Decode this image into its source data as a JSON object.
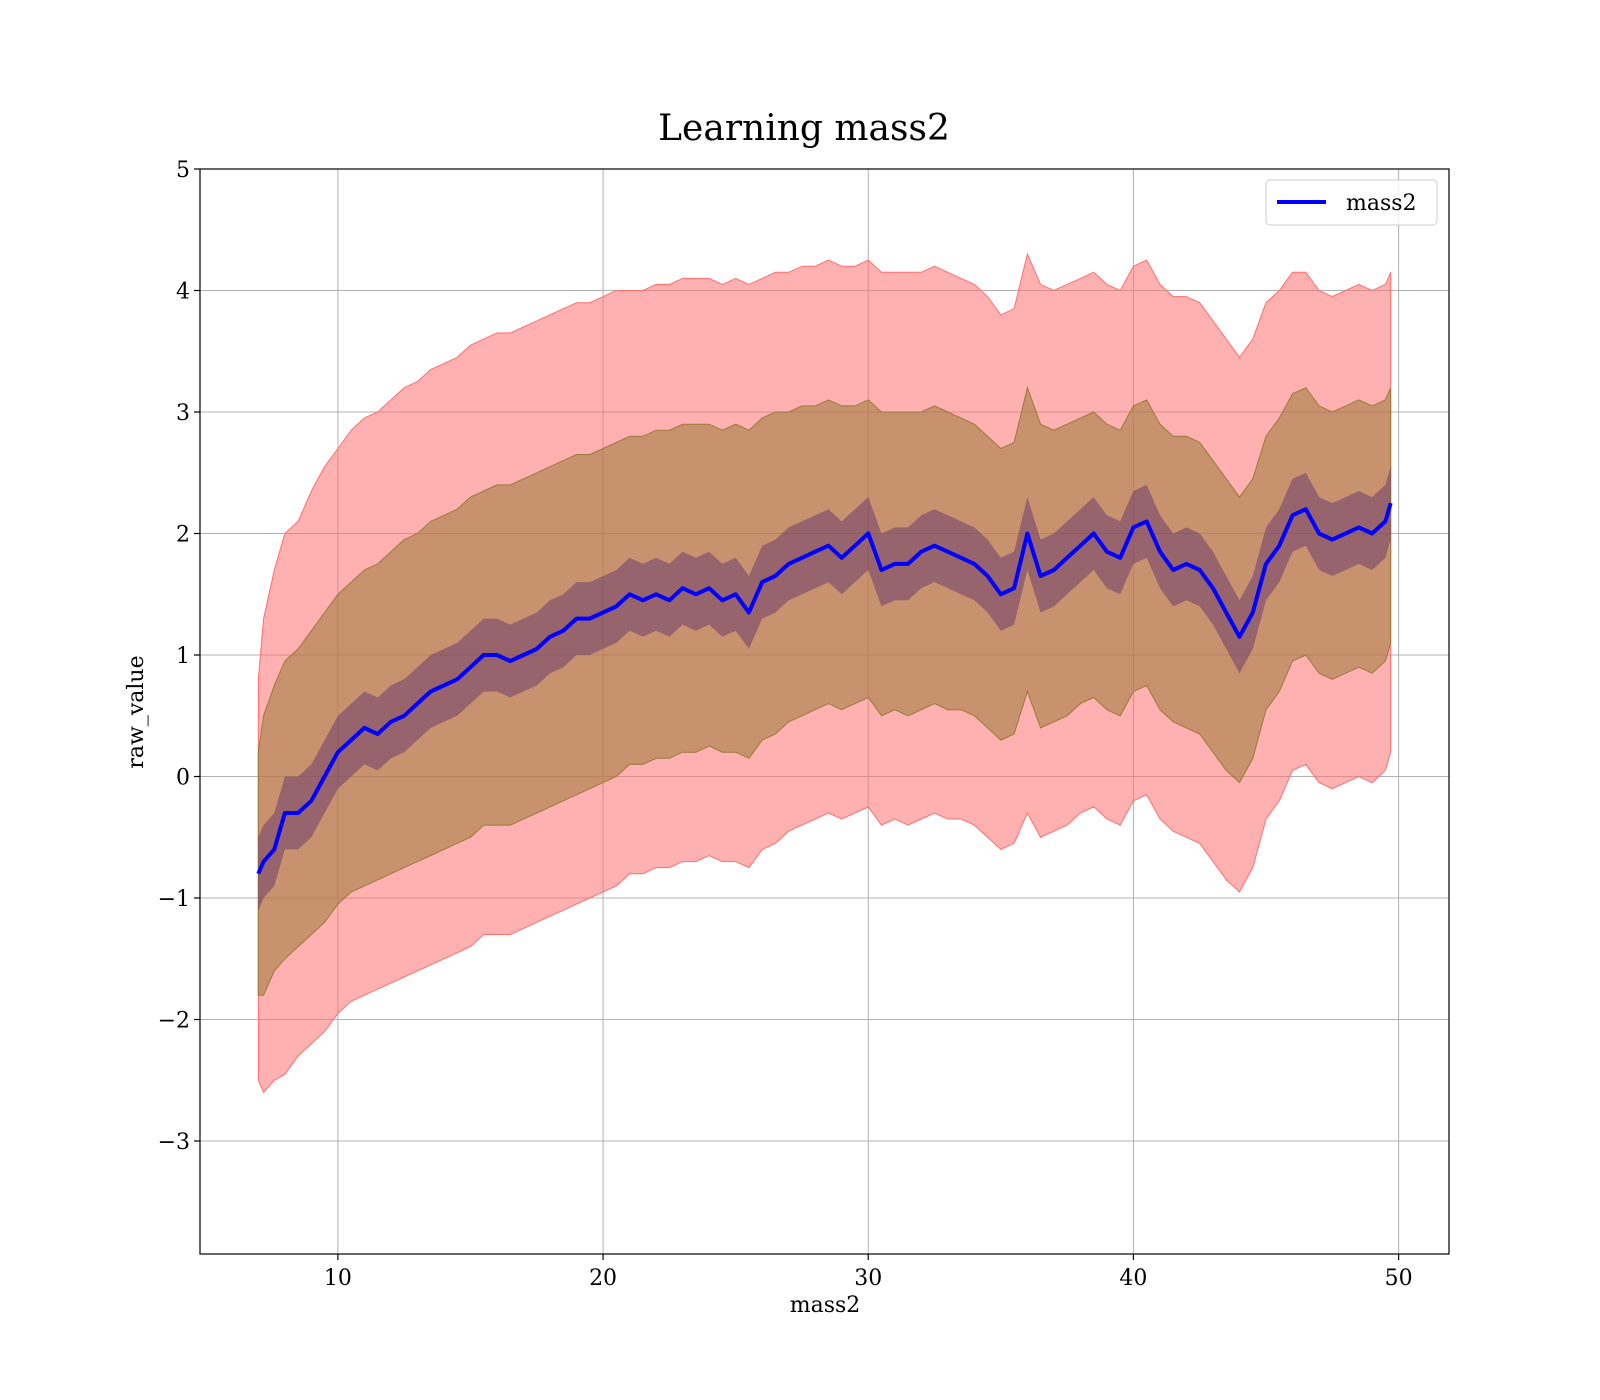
{
  "chart_data": {
    "type": "area",
    "title": "Learning mass2",
    "xlabel": "mass2",
    "ylabel": "raw_value",
    "xlim": [
      4.8,
      51.9
    ],
    "ylim": [
      -3.93,
      5.0
    ],
    "xticks": [
      10,
      20,
      30,
      40,
      50
    ],
    "yticks": [
      5,
      4,
      3,
      2,
      1,
      0,
      -1,
      -2,
      -3
    ],
    "xtick_labels": [
      "10",
      "20",
      "30",
      "40",
      "50"
    ],
    "ytick_labels": [
      "5",
      "4",
      "3",
      "2",
      "1",
      "0",
      "−1",
      "−2",
      "−3"
    ],
    "grid": true,
    "legend": {
      "placement": "top-right",
      "entries": [
        "mass2"
      ]
    },
    "colors": {
      "line": "#0000ff",
      "outer_band": "#ff6f6f",
      "inner_band": "#9a7a3a",
      "core_band": "#5a2a6a",
      "grid": "#b0b0b0"
    },
    "series": [
      {
        "name": "mass2",
        "role": "line",
        "x": [
          7.0,
          7.2,
          7.6,
          8.0,
          8.5,
          9.0,
          9.5,
          10.0,
          10.5,
          11.0,
          11.5,
          12.0,
          12.5,
          13.0,
          13.5,
          14.0,
          14.5,
          15.0,
          15.5,
          16.0,
          16.5,
          17.0,
          17.5,
          18.0,
          18.5,
          19.0,
          19.5,
          20.0,
          20.5,
          21.0,
          21.5,
          22.0,
          22.5,
          23.0,
          23.5,
          24.0,
          24.5,
          25.0,
          25.5,
          26.0,
          26.5,
          27.0,
          27.5,
          28.0,
          28.5,
          29.0,
          29.5,
          30.0,
          30.5,
          31.0,
          31.5,
          32.0,
          32.5,
          33.0,
          33.5,
          34.0,
          34.5,
          35.0,
          35.5,
          36.0,
          36.5,
          37.0,
          37.5,
          38.0,
          38.5,
          39.0,
          39.5,
          40.0,
          40.5,
          41.0,
          41.5,
          42.0,
          42.5,
          43.0,
          43.5,
          44.0,
          44.5,
          45.0,
          45.5,
          46.0,
          46.5,
          47.0,
          47.5,
          48.0,
          48.5,
          49.0,
          49.5,
          49.7
        ],
        "y": [
          -0.8,
          -0.7,
          -0.6,
          -0.3,
          -0.3,
          -0.2,
          0.0,
          0.2,
          0.3,
          0.4,
          0.35,
          0.45,
          0.5,
          0.6,
          0.7,
          0.75,
          0.8,
          0.9,
          1.0,
          1.0,
          0.95,
          1.0,
          1.05,
          1.15,
          1.2,
          1.3,
          1.3,
          1.35,
          1.4,
          1.5,
          1.45,
          1.5,
          1.45,
          1.55,
          1.5,
          1.55,
          1.45,
          1.5,
          1.35,
          1.6,
          1.65,
          1.75,
          1.8,
          1.85,
          1.9,
          1.8,
          1.9,
          2.0,
          1.7,
          1.75,
          1.75,
          1.85,
          1.9,
          1.85,
          1.8,
          1.75,
          1.65,
          1.5,
          1.55,
          2.0,
          1.65,
          1.7,
          1.8,
          1.9,
          2.0,
          1.85,
          1.8,
          2.05,
          2.1,
          1.85,
          1.7,
          1.75,
          1.7,
          1.55,
          1.35,
          1.15,
          1.35,
          1.75,
          1.9,
          2.15,
          2.2,
          2.0,
          1.95,
          2.0,
          2.05,
          2.0,
          2.1,
          2.25
        ]
      },
      {
        "name": "",
        "role": "band-upper",
        "values": [
          0.8,
          1.3,
          1.7,
          2.0,
          2.1,
          2.35,
          2.55,
          2.7,
          2.85,
          2.95,
          3.0,
          3.1,
          3.2,
          3.25,
          3.35,
          3.4,
          3.45,
          3.55,
          3.6,
          3.65,
          3.65,
          3.7,
          3.75,
          3.8,
          3.85,
          3.9,
          3.9,
          3.95,
          4.0,
          4.0,
          4.0,
          4.05,
          4.05,
          4.1,
          4.1,
          4.1,
          4.05,
          4.1,
          4.05,
          4.1,
          4.15,
          4.15,
          4.2,
          4.2,
          4.25,
          4.2,
          4.2,
          4.25,
          4.15,
          4.15,
          4.15,
          4.15,
          4.2,
          4.15,
          4.1,
          4.05,
          3.95,
          3.8,
          3.85,
          4.3,
          4.05,
          4.0,
          4.05,
          4.1,
          4.15,
          4.05,
          4.0,
          4.2,
          4.25,
          4.05,
          3.95,
          3.95,
          3.9,
          3.75,
          3.6,
          3.45,
          3.6,
          3.9,
          4.0,
          4.15,
          4.15,
          4.0,
          3.95,
          4.0,
          4.05,
          4.0,
          4.05,
          4.15
        ]
      },
      {
        "name": "",
        "role": "band-lower",
        "values": [
          -2.5,
          -2.6,
          -2.5,
          -2.45,
          -2.3,
          -2.2,
          -2.1,
          -1.95,
          -1.85,
          -1.8,
          -1.75,
          -1.7,
          -1.65,
          -1.6,
          -1.55,
          -1.5,
          -1.45,
          -1.4,
          -1.3,
          -1.3,
          -1.3,
          -1.25,
          -1.2,
          -1.15,
          -1.1,
          -1.05,
          -1.0,
          -0.95,
          -0.9,
          -0.8,
          -0.8,
          -0.75,
          -0.75,
          -0.7,
          -0.7,
          -0.65,
          -0.7,
          -0.7,
          -0.75,
          -0.6,
          -0.55,
          -0.45,
          -0.4,
          -0.35,
          -0.3,
          -0.35,
          -0.3,
          -0.25,
          -0.4,
          -0.35,
          -0.4,
          -0.35,
          -0.3,
          -0.35,
          -0.35,
          -0.4,
          -0.5,
          -0.6,
          -0.55,
          -0.3,
          -0.5,
          -0.45,
          -0.4,
          -0.3,
          -0.25,
          -0.35,
          -0.4,
          -0.2,
          -0.15,
          -0.35,
          -0.45,
          -0.5,
          -0.55,
          -0.7,
          -0.85,
          -0.95,
          -0.75,
          -0.35,
          -0.2,
          0.05,
          0.1,
          -0.05,
          -0.1,
          -0.05,
          0.0,
          -0.05,
          0.05,
          0.2
        ]
      },
      {
        "name": "",
        "role": "inner-band-upper",
        "values": [
          0.2,
          0.5,
          0.75,
          0.95,
          1.05,
          1.2,
          1.35,
          1.5,
          1.6,
          1.7,
          1.75,
          1.85,
          1.95,
          2.0,
          2.1,
          2.15,
          2.2,
          2.3,
          2.35,
          2.4,
          2.4,
          2.45,
          2.5,
          2.55,
          2.6,
          2.65,
          2.65,
          2.7,
          2.75,
          2.8,
          2.8,
          2.85,
          2.85,
          2.9,
          2.9,
          2.9,
          2.85,
          2.9,
          2.85,
          2.95,
          3.0,
          3.0,
          3.05,
          3.05,
          3.1,
          3.05,
          3.05,
          3.1,
          3.0,
          3.0,
          3.0,
          3.0,
          3.05,
          3.0,
          2.95,
          2.9,
          2.8,
          2.7,
          2.75,
          3.2,
          2.9,
          2.85,
          2.9,
          2.95,
          3.0,
          2.9,
          2.85,
          3.05,
          3.1,
          2.9,
          2.8,
          2.8,
          2.75,
          2.6,
          2.45,
          2.3,
          2.45,
          2.8,
          2.95,
          3.15,
          3.2,
          3.05,
          3.0,
          3.05,
          3.1,
          3.05,
          3.1,
          3.2
        ]
      },
      {
        "name": "",
        "role": "inner-band-lower",
        "values": [
          -1.8,
          -1.8,
          -1.6,
          -1.5,
          -1.4,
          -1.3,
          -1.2,
          -1.05,
          -0.95,
          -0.9,
          -0.85,
          -0.8,
          -0.75,
          -0.7,
          -0.65,
          -0.6,
          -0.55,
          -0.5,
          -0.4,
          -0.4,
          -0.4,
          -0.35,
          -0.3,
          -0.25,
          -0.2,
          -0.15,
          -0.1,
          -0.05,
          0.0,
          0.1,
          0.1,
          0.15,
          0.15,
          0.2,
          0.2,
          0.25,
          0.2,
          0.2,
          0.15,
          0.3,
          0.35,
          0.45,
          0.5,
          0.55,
          0.6,
          0.55,
          0.6,
          0.65,
          0.5,
          0.55,
          0.5,
          0.55,
          0.6,
          0.55,
          0.55,
          0.5,
          0.4,
          0.3,
          0.35,
          0.7,
          0.4,
          0.45,
          0.5,
          0.6,
          0.65,
          0.55,
          0.5,
          0.7,
          0.75,
          0.55,
          0.45,
          0.4,
          0.35,
          0.2,
          0.05,
          -0.05,
          0.15,
          0.55,
          0.7,
          0.95,
          1.0,
          0.85,
          0.8,
          0.85,
          0.9,
          0.85,
          0.95,
          1.1
        ]
      }
    ]
  }
}
